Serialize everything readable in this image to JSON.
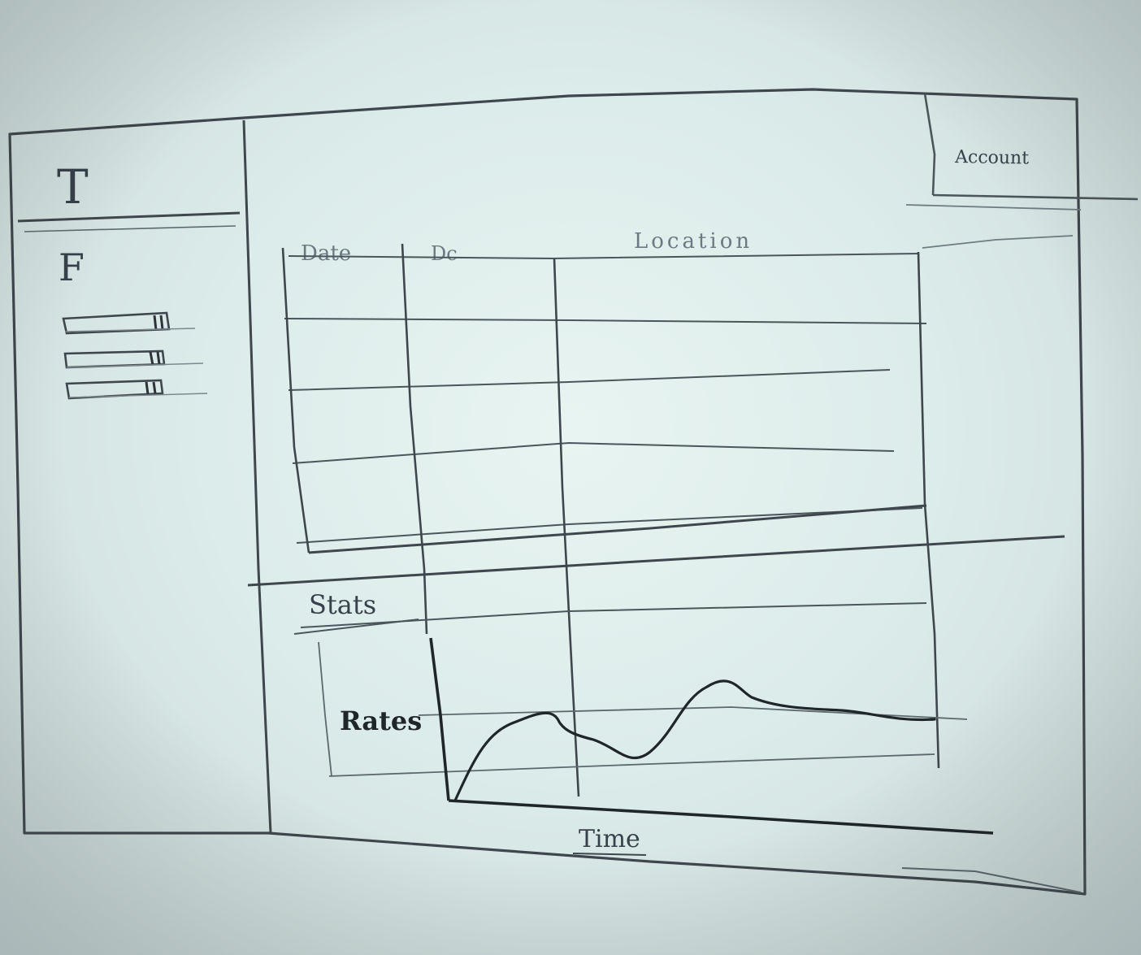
{
  "sketch": {
    "sidebar": {
      "title_glyph": "T",
      "filter_glyph": "F"
    },
    "table": {
      "columns": [
        "Date",
        "Dc",
        "Location"
      ]
    },
    "account_label": "Account",
    "stats": {
      "label": "Stats",
      "ylabel": "Rates",
      "xlabel": "Time"
    },
    "ink_color": "#2c3338"
  }
}
